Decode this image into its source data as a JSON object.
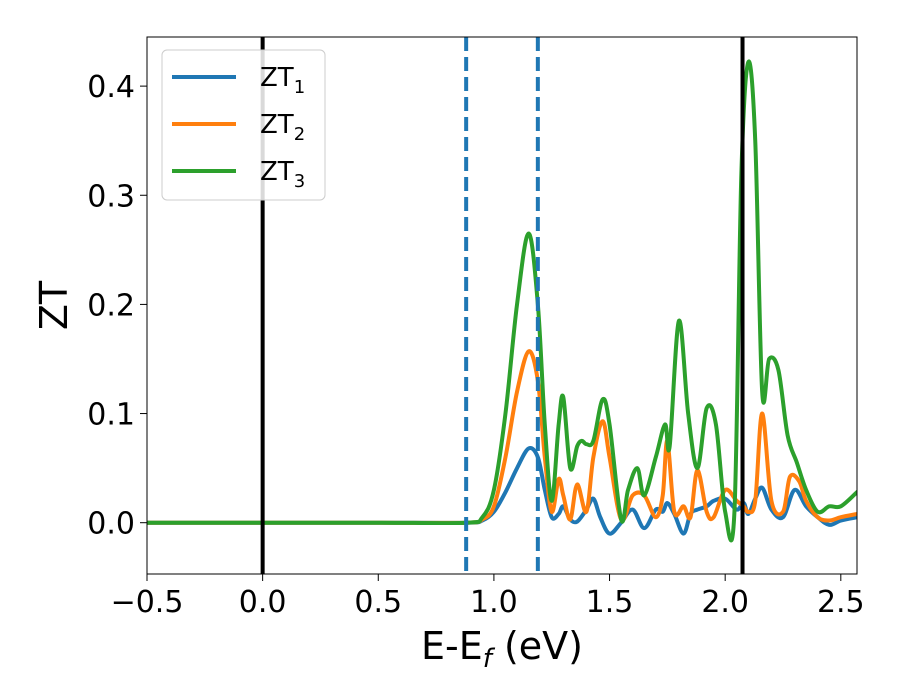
{
  "chart_data": {
    "type": "line",
    "xlabel": {
      "main": "E-E",
      "sub": "f",
      "suffix": " (eV)"
    },
    "ylabel": "ZT",
    "xlim": [
      -0.5,
      2.57
    ],
    "ylim": [
      -0.047,
      0.445
    ],
    "xticks": [
      -0.5,
      0.0,
      0.5,
      1.0,
      1.5,
      2.0,
      2.5
    ],
    "xtick_labels": [
      "−0.5",
      "0.0",
      "0.5",
      "1.0",
      "1.5",
      "2.0",
      "2.5"
    ],
    "yticks": [
      0.0,
      0.1,
      0.2,
      0.3,
      0.4
    ],
    "ytick_labels": [
      "0.0",
      "0.1",
      "0.2",
      "0.3",
      "0.4"
    ],
    "grid": false,
    "legend_position": "top-left",
    "vlines": [
      {
        "x": 0.0,
        "style": "solid",
        "color": "#000000"
      },
      {
        "x": 0.88,
        "style": "dashed",
        "color": "#1f77b4"
      },
      {
        "x": 1.19,
        "style": "dashed",
        "color": "#1f77b4"
      },
      {
        "x": 2.075,
        "style": "solid",
        "color": "#000000"
      }
    ],
    "series": [
      {
        "name": "ZT",
        "sub": "1",
        "color": "#1f77b4",
        "x": [
          -0.5,
          0.0,
          0.5,
          0.88,
          0.95,
          1.0,
          1.05,
          1.1,
          1.15,
          1.19,
          1.22,
          1.25,
          1.28,
          1.3,
          1.33,
          1.36,
          1.4,
          1.43,
          1.46,
          1.5,
          1.55,
          1.6,
          1.65,
          1.7,
          1.73,
          1.75,
          1.78,
          1.82,
          1.85,
          1.88,
          1.92,
          1.95,
          2.0,
          2.05,
          2.08,
          2.1,
          2.13,
          2.16,
          2.2,
          2.25,
          2.3,
          2.35,
          2.4,
          2.45,
          2.5,
          2.57
        ],
        "y": [
          0.0,
          0.0,
          0.0,
          0.0,
          0.002,
          0.01,
          0.028,
          0.05,
          0.068,
          0.06,
          0.03,
          0.005,
          0.008,
          0.015,
          0.003,
          0.001,
          0.012,
          0.022,
          0.005,
          -0.01,
          0.0,
          0.012,
          -0.005,
          0.012,
          0.01,
          0.018,
          0.008,
          -0.01,
          0.008,
          0.012,
          0.015,
          0.02,
          0.022,
          0.012,
          0.018,
          0.008,
          0.022,
          0.032,
          0.012,
          0.005,
          0.03,
          0.015,
          0.005,
          -0.002,
          0.002,
          0.005
        ]
      },
      {
        "name": "ZT",
        "sub": "2",
        "color": "#ff7f0e",
        "x": [
          -0.5,
          0.0,
          0.5,
          0.88,
          0.95,
          1.0,
          1.05,
          1.1,
          1.15,
          1.19,
          1.22,
          1.25,
          1.28,
          1.3,
          1.33,
          1.36,
          1.4,
          1.43,
          1.47,
          1.5,
          1.55,
          1.6,
          1.65,
          1.7,
          1.73,
          1.75,
          1.78,
          1.82,
          1.85,
          1.88,
          1.92,
          1.95,
          2.0,
          2.05,
          2.08,
          2.1,
          2.13,
          2.16,
          2.2,
          2.25,
          2.28,
          2.32,
          2.35,
          2.4,
          2.45,
          2.5,
          2.57
        ],
        "y": [
          0.0,
          0.0,
          0.0,
          0.0,
          0.003,
          0.015,
          0.06,
          0.12,
          0.157,
          0.13,
          0.06,
          0.01,
          0.04,
          0.025,
          0.003,
          0.035,
          0.01,
          0.06,
          0.093,
          0.06,
          0.003,
          0.025,
          0.025,
          0.005,
          0.025,
          0.075,
          0.01,
          0.015,
          0.005,
          0.048,
          0.01,
          0.005,
          0.03,
          0.02,
          0.015,
          0.01,
          0.02,
          0.1,
          0.02,
          0.01,
          0.042,
          0.038,
          0.02,
          0.005,
          0.002,
          0.005,
          0.008
        ]
      },
      {
        "name": "ZT",
        "sub": "3",
        "color": "#2ca02c",
        "x": [
          -0.5,
          0.0,
          0.5,
          0.88,
          0.95,
          1.0,
          1.05,
          1.1,
          1.15,
          1.19,
          1.22,
          1.25,
          1.28,
          1.3,
          1.33,
          1.36,
          1.38,
          1.4,
          1.43,
          1.47,
          1.5,
          1.55,
          1.58,
          1.62,
          1.65,
          1.7,
          1.74,
          1.76,
          1.8,
          1.84,
          1.88,
          1.92,
          1.96,
          2.0,
          2.04,
          2.07,
          2.1,
          2.13,
          2.16,
          2.19,
          2.23,
          2.27,
          2.31,
          2.35,
          2.4,
          2.45,
          2.5,
          2.57
        ],
        "y": [
          0.0,
          0.0,
          0.0,
          0.0,
          0.005,
          0.03,
          0.1,
          0.2,
          0.265,
          0.2,
          0.09,
          0.02,
          0.09,
          0.115,
          0.05,
          0.07,
          0.075,
          0.072,
          0.075,
          0.113,
          0.09,
          0.003,
          0.03,
          0.05,
          0.025,
          0.06,
          0.09,
          0.07,
          0.185,
          0.1,
          0.05,
          0.105,
          0.09,
          0.01,
          0.01,
          0.32,
          0.422,
          0.35,
          0.12,
          0.15,
          0.14,
          0.08,
          0.055,
          0.03,
          0.01,
          0.015,
          0.015,
          0.028
        ]
      }
    ]
  }
}
